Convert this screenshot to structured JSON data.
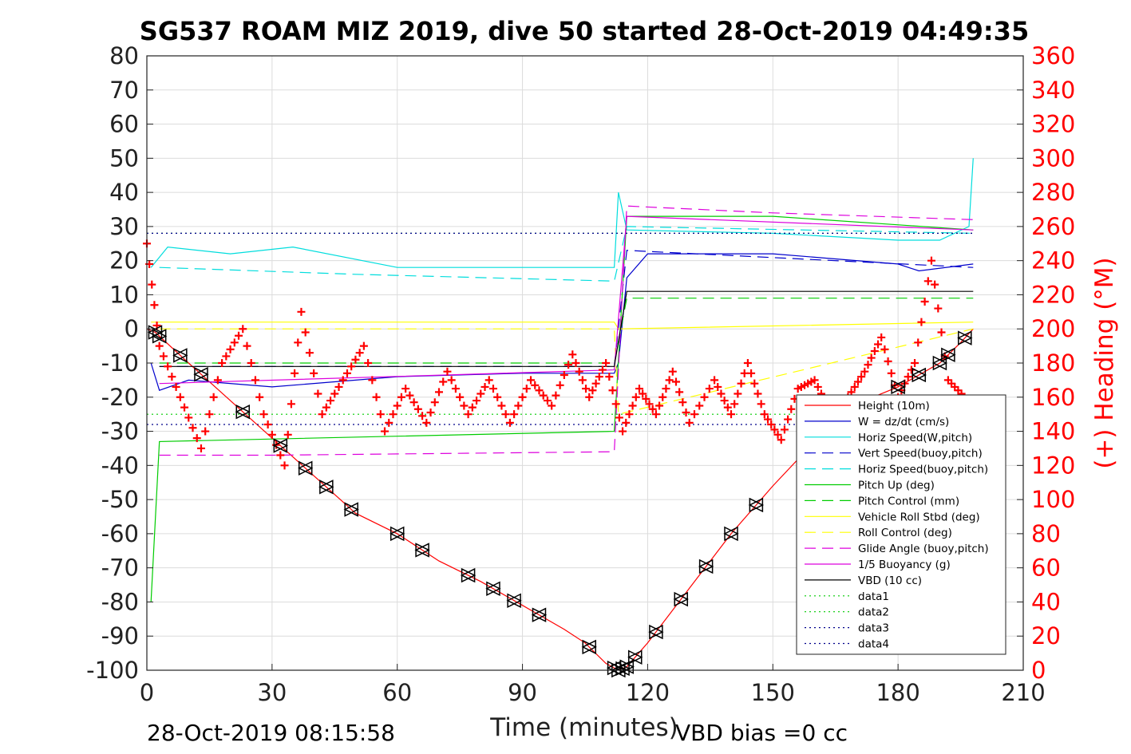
{
  "chart_data": {
    "type": "line",
    "title": "SG537 ROAM MIZ 2019, dive 50 started 28-Oct-2019 04:49:35",
    "xlabel": "Time (minutes)",
    "ylabel_right": "(+) Heading (°M)",
    "xlim": [
      0,
      210
    ],
    "ylim": [
      -100,
      80
    ],
    "ylim_right": [
      0,
      360
    ],
    "x_ticks": [
      "0",
      "30",
      "60",
      "90",
      "120",
      "150",
      "180",
      "210"
    ],
    "y_ticks": [
      "80",
      "70",
      "60",
      "50",
      "40",
      "30",
      "20",
      "10",
      "0",
      "-10",
      "-20",
      "-30",
      "-40",
      "-50",
      "-60",
      "-70",
      "-80",
      "-90",
      "-100"
    ],
    "y_ticks_right": [
      "360",
      "340",
      "320",
      "300",
      "280",
      "260",
      "240",
      "220",
      "200",
      "180",
      "160",
      "140",
      "120",
      "100",
      "80",
      "60",
      "40",
      "20",
      "0"
    ],
    "grid": true,
    "legend_position": "bottom-right",
    "footer_left": "28-Oct-2019 08:15:58",
    "footer_right": "VBD bias =0 cc",
    "colors": {
      "height": "#ff0000",
      "w": "#0000cc",
      "hspeed": "#00dddd",
      "pitch": "#00cc00",
      "roll": "#ffff00",
      "glide": "#dd00dd",
      "vbd": "#000000",
      "data": "#00008b",
      "heading": "#ff0000"
    },
    "series": [
      {
        "name": "Height (10m)",
        "x": [
          0,
          2,
          10,
          20,
          30,
          40,
          50,
          60,
          70,
          80,
          90,
          100,
          105,
          110,
          113,
          115,
          120,
          130,
          140,
          150,
          160,
          170,
          180,
          190,
          195,
          198
        ],
        "values": [
          0,
          -1,
          -10,
          -21,
          -32,
          -43,
          -54,
          -60,
          -68,
          -74,
          -81,
          -88,
          -92,
          -98,
          -100,
          -99,
          -92,
          -76,
          -60,
          -46,
          -33,
          -22,
          -17,
          -10,
          -4,
          0
        ]
      },
      {
        "name": "W = dz/dt (cm/s)",
        "x": [
          1,
          3,
          10,
          30,
          60,
          90,
          112,
          113,
          115,
          120,
          150,
          180,
          185,
          198
        ],
        "values": [
          -10,
          -18,
          -15,
          -17,
          -14,
          -13,
          -13,
          -10,
          15,
          22,
          22,
          19,
          17,
          19
        ]
      },
      {
        "name": "Horiz Speed(W,pitch)",
        "x": [
          1,
          5,
          20,
          35,
          60,
          90,
          112,
          113,
          115,
          150,
          180,
          190,
          197,
          198
        ],
        "values": [
          18,
          24,
          22,
          24,
          18,
          18,
          18,
          40,
          29,
          28,
          26,
          26,
          30,
          50
        ]
      },
      {
        "name": "Vert Speed(buoy,pitch)",
        "x": [
          3,
          112,
          115,
          198
        ],
        "values": [
          -11,
          -11,
          23,
          18
        ]
      },
      {
        "name": "Horiz Speed(buoy,pitch)",
        "x": [
          3,
          50,
          112,
          115,
          198
        ],
        "values": [
          18,
          16,
          14,
          30,
          28
        ]
      },
      {
        "name": "Pitch Up (deg)",
        "x": [
          1,
          3,
          112,
          115,
          150,
          198
        ],
        "values": [
          -80,
          -33,
          -30,
          33,
          33,
          29
        ]
      },
      {
        "name": "Pitch Control (mm)",
        "x": [
          3,
          112,
          115,
          198
        ],
        "values": [
          -10,
          -10,
          9,
          9
        ]
      },
      {
        "name": "Vehicle Roll Stbd (deg)",
        "x": [
          1,
          112,
          113,
          198
        ],
        "values": [
          2,
          2,
          0,
          2
        ]
      },
      {
        "name": "Roll Control (deg)",
        "x": [
          3,
          112,
          113,
          198
        ],
        "values": [
          0,
          0,
          -25,
          0
        ]
      },
      {
        "name": "Glide Angle (buoy,pitch)",
        "x": [
          3,
          30,
          112,
          115,
          150,
          198
        ],
        "values": [
          -37,
          -37,
          -36,
          36,
          34,
          32
        ]
      },
      {
        "name": "1/5 Buoyancy (g)",
        "x": [
          3,
          112,
          115,
          198
        ],
        "values": [
          -16,
          -12,
          33,
          29
        ]
      },
      {
        "name": "VBD (10 cc)",
        "x": [
          3,
          112,
          115,
          198
        ],
        "values": [
          -11,
          -11,
          11,
          11
        ]
      },
      {
        "name": "data1",
        "x": [
          0,
          198
        ],
        "values": [
          28,
          28
        ]
      },
      {
        "name": "data2",
        "x": [
          0,
          198
        ],
        "values": [
          -25,
          -25
        ]
      },
      {
        "name": "data3",
        "x": [
          0,
          198
        ],
        "values": [
          -28,
          -28
        ]
      },
      {
        "name": "data4",
        "x": [
          0,
          198
        ],
        "values": [
          28,
          28
        ]
      }
    ],
    "heading_samples": {
      "x": [
        0,
        3,
        8,
        13,
        18,
        23,
        28,
        33,
        37,
        42,
        47,
        52,
        57,
        62,
        67,
        72,
        77,
        82,
        87,
        92,
        97,
        102,
        106,
        110,
        114,
        118,
        122,
        126,
        130,
        136,
        140,
        144,
        148,
        152,
        156,
        160,
        164,
        168,
        172,
        176,
        180,
        184,
        188,
        192,
        196
      ],
      "values": [
        250,
        190,
        160,
        130,
        180,
        200,
        150,
        120,
        210,
        150,
        170,
        190,
        140,
        165,
        145,
        175,
        150,
        170,
        145,
        170,
        155,
        185,
        160,
        180,
        140,
        165,
        150,
        175,
        145,
        170,
        150,
        180,
        150,
        135,
        165,
        170,
        150,
        160,
        175,
        195,
        160,
        180,
        240,
        170,
        160
      ]
    },
    "dive_markers_x": [
      2,
      3,
      8,
      13,
      23,
      32,
      38,
      43,
      49,
      60,
      66,
      77,
      83,
      88,
      94,
      106,
      112,
      113,
      114,
      115,
      117,
      122,
      128,
      134,
      140,
      146,
      180,
      185,
      190,
      192,
      196
    ]
  }
}
